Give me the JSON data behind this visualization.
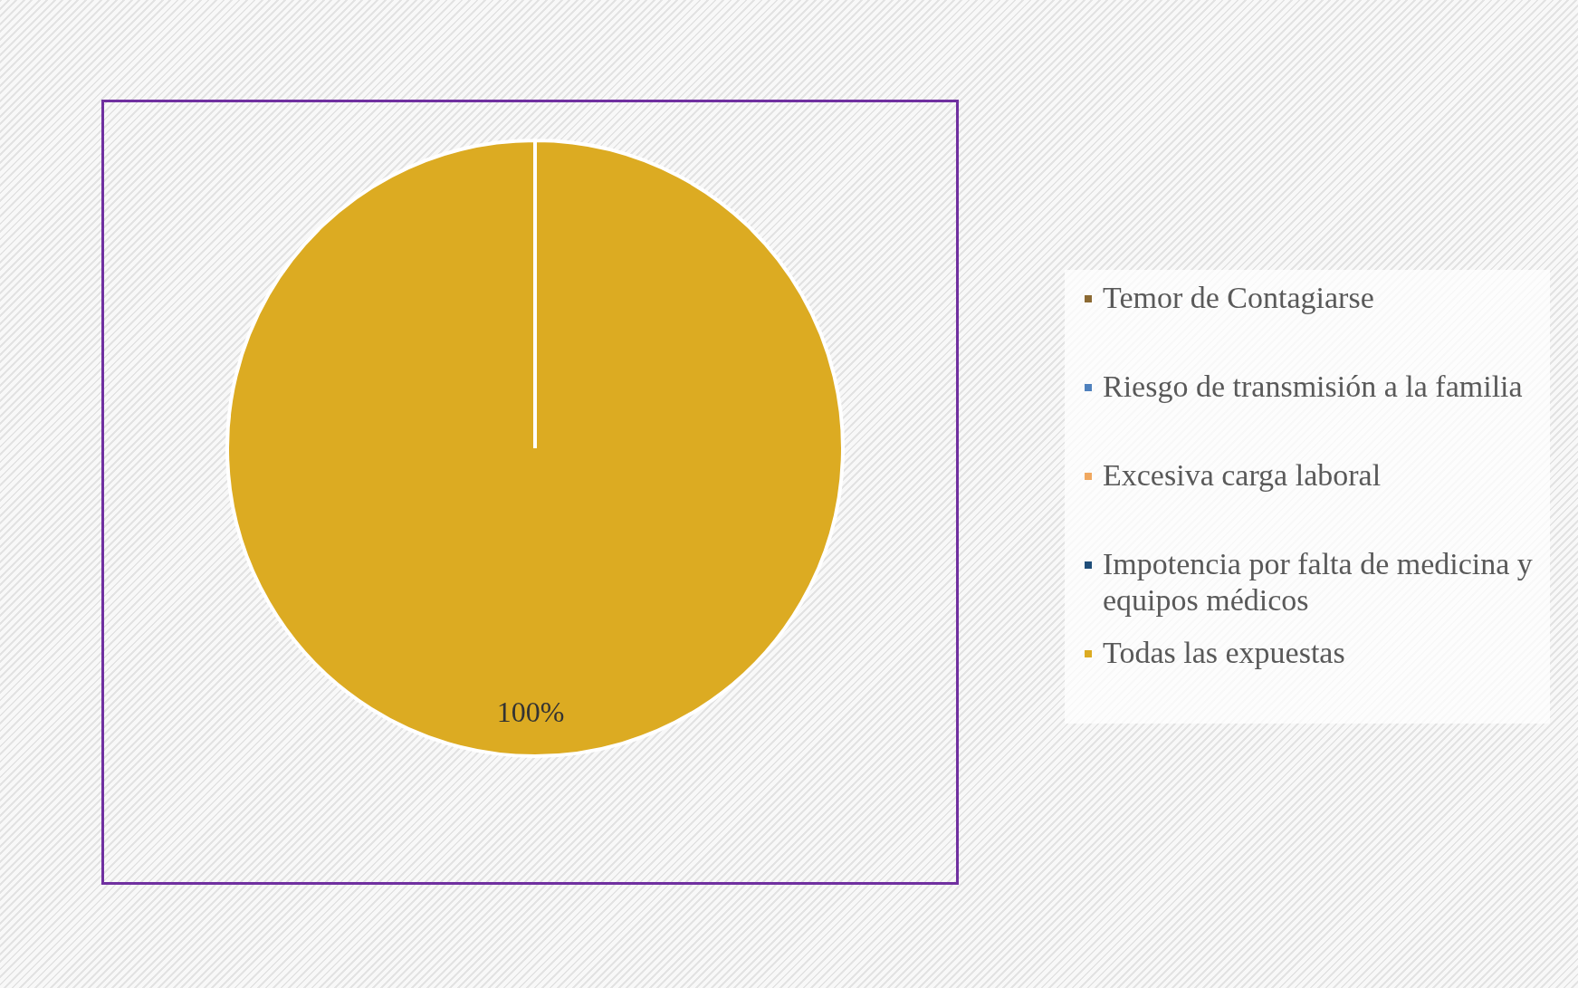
{
  "chart_data": {
    "type": "pie",
    "categories": [
      "Temor de Contagiarse",
      "Riesgo de transmisión a la familia",
      "Excesiva carga laboral",
      "Impotencia por falta de medicina y equipos médicos",
      "Todas las expuestas"
    ],
    "values": [
      0,
      0,
      0,
      0,
      100
    ],
    "colors": [
      "#8c6a33",
      "#4f81bd",
      "#f0a860",
      "#1f4e79",
      "#dcab22"
    ],
    "value_labels": [
      null,
      null,
      null,
      null,
      "100%"
    ],
    "legend": "right"
  }
}
